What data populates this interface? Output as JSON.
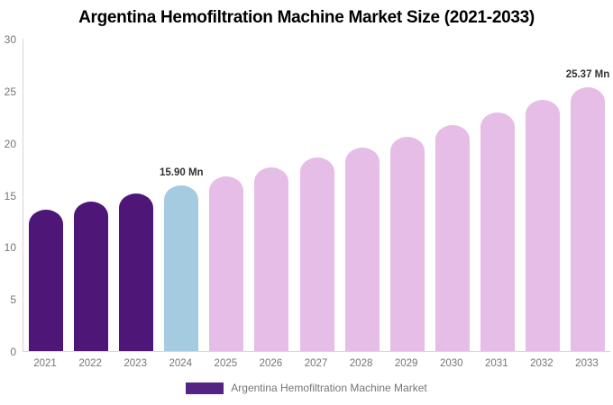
{
  "title": "Argentina Hemofiltration Machine Market Size (2021-2033)",
  "legend": {
    "label": "Argentina Hemofiltration Machine Market",
    "swatch_color": "#542383"
  },
  "chart_data": {
    "type": "bar",
    "title": "Argentina Hemofiltration Machine Market Size (2021-2033)",
    "categories": [
      "2021",
      "2022",
      "2023",
      "2024",
      "2025",
      "2026",
      "2027",
      "2028",
      "2029",
      "2030",
      "2031",
      "2032",
      "2033"
    ],
    "values": [
      13.61,
      14.33,
      15.1,
      15.9,
      16.75,
      17.64,
      18.58,
      19.57,
      20.61,
      21.71,
      22.87,
      24.08,
      25.37
    ],
    "data_labels": [
      "",
      "",
      "",
      "15.90 Mn",
      "",
      "",
      "",
      "",
      "",
      "",
      "",
      "",
      "25.37 Mn"
    ],
    "bar_colors": [
      "#4E1677",
      "#4E1677",
      "#4E1677",
      "#A4CBE0",
      "#E6BDE7",
      "#E6BDE7",
      "#E6BDE7",
      "#E6BDE7",
      "#E6BDE7",
      "#E6BDE7",
      "#E6BDE7",
      "#E6BDE7",
      "#E6BDE7"
    ],
    "series_name": "Argentina Hemofiltration Machine Market",
    "xlabel": "",
    "ylabel": "",
    "ylim": [
      0,
      30
    ],
    "yticks": [
      0,
      5,
      10,
      15,
      20,
      25,
      30
    ],
    "grid": false,
    "legend_position": "bottom",
    "unit": "Mn"
  },
  "colors": {
    "historical_bar": "#4E1677",
    "base_year_bar": "#A4CBE0",
    "forecast_bar": "#E6BDE7",
    "axis_line": "#d6d6d6",
    "tick_label": "#757575",
    "data_label": "#333333",
    "title_text": "#000000"
  }
}
